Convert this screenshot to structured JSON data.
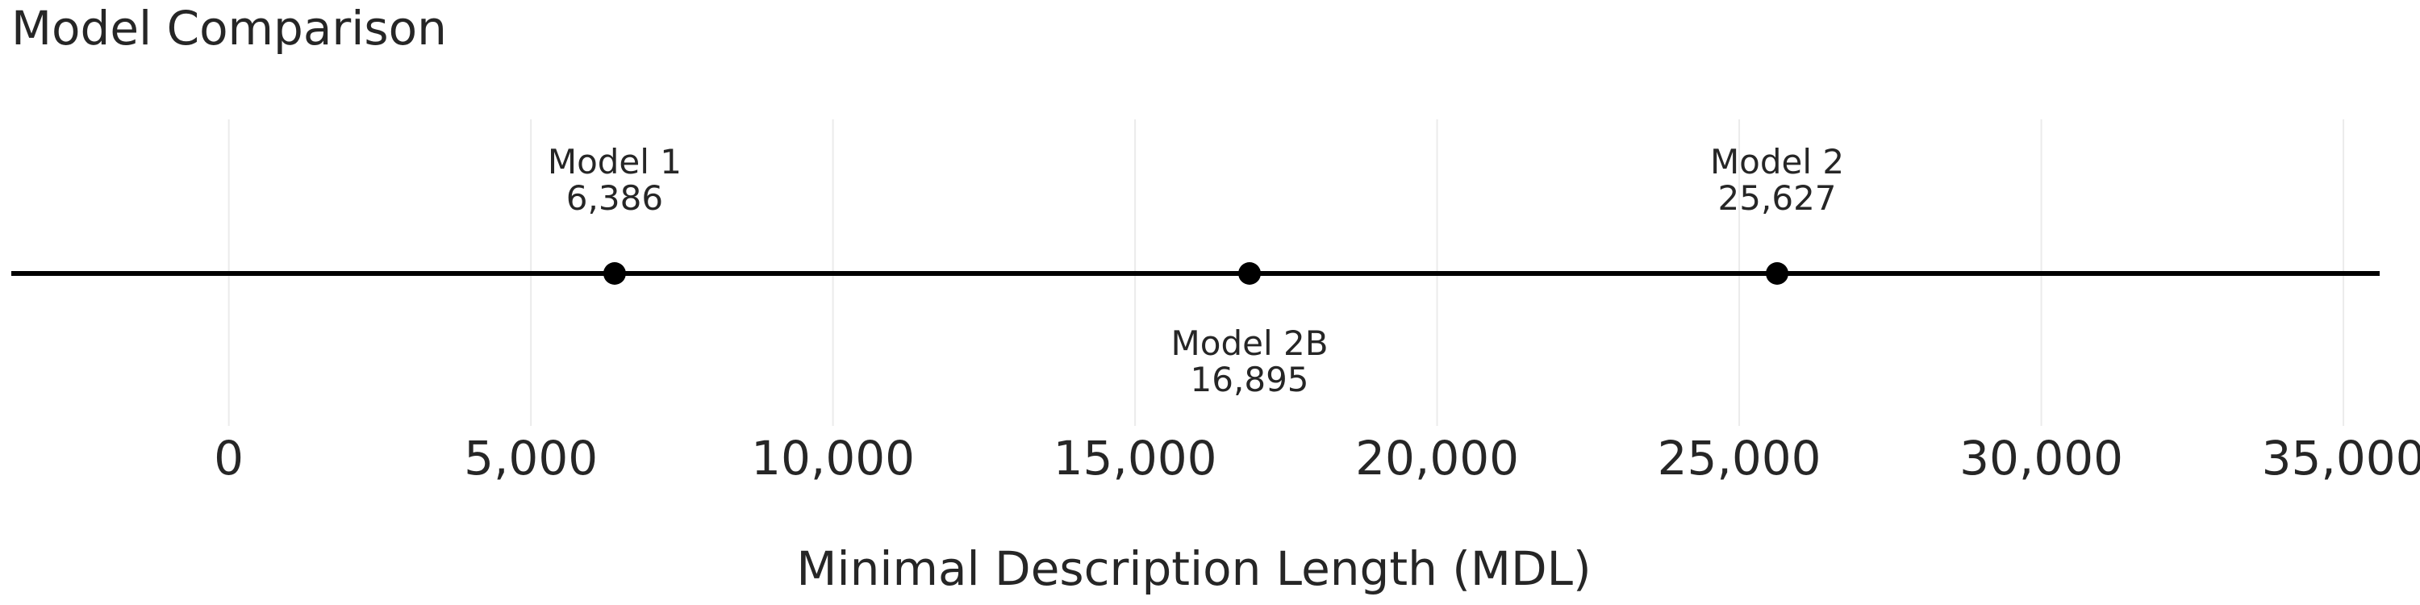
{
  "chart_data": {
    "type": "scatter",
    "title": "Model Comparison",
    "xlabel": "Minimal Description Length (MDL)",
    "ylabel": "",
    "xlim": [
      -3600,
      35600
    ],
    "x_ticks": [
      0,
      5000,
      10000,
      15000,
      20000,
      25000,
      30000,
      35000
    ],
    "x_tick_labels": [
      "0",
      "5,000",
      "10,000",
      "15,000",
      "20,000",
      "25,000",
      "30,000",
      "35,000"
    ],
    "grid": "vertical",
    "points": [
      {
        "name": "Model 1",
        "value": 6386,
        "value_label": "6,386",
        "label_position": "above"
      },
      {
        "name": "Model 2B",
        "value": 16895,
        "value_label": "16,895",
        "label_position": "below"
      },
      {
        "name": "Model 2",
        "value": 25627,
        "value_label": "25,627",
        "label_position": "above"
      }
    ],
    "colors": {
      "line": "#000000",
      "point": "#000000",
      "grid": "#ebebeb",
      "text": "#262626"
    }
  }
}
